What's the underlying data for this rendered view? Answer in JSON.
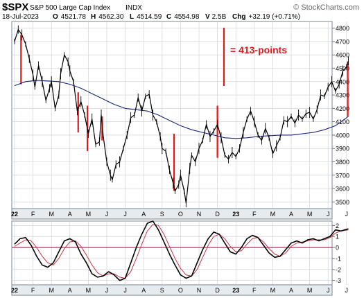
{
  "header": {
    "symbol": "$SPX",
    "name": "S&P 500 Large Cap Index",
    "exchange": "INDX",
    "watermark": "© StockCharts.com",
    "date": "18-Jul-2023",
    "open_label": "O",
    "open": "4521.78",
    "high_label": "H",
    "high": "4562.30",
    "low_label": "L",
    "low": "4514.59",
    "close_label": "C",
    "close": "4554.98",
    "volume_label": "V",
    "volume": "2.5B",
    "chg_label": "Chg",
    "chg": "+32.19 (+0.71%)"
  },
  "annotation": "= 413-points",
  "colors": {
    "price": "#000000",
    "ma": "#1a237e",
    "red": "#e01a1a",
    "osc_signal": "#cc3344",
    "zero_line": "#c00040",
    "grid": "#c8cdd2",
    "ticks_bg": "#e6ebef"
  },
  "chart_data": [
    {
      "type": "line",
      "x_tick_labels": [
        "22",
        "F",
        "M",
        "A",
        "M",
        "J",
        "J",
        "A",
        "S",
        "O",
        "N",
        "D",
        "23",
        "F",
        "M",
        "A",
        "M",
        "J",
        "J"
      ],
      "y_tick_labels": [
        "3500",
        "3600",
        "3700",
        "3800",
        "3900",
        "4000",
        "4100",
        "4200",
        "4300",
        "4400",
        "4500",
        "4600",
        "4700",
        "4800"
      ],
      "ylim": [
        3450,
        4850
      ],
      "series": [
        {
          "role": "price",
          "points": [
            [
              0.0,
              4700
            ],
            [
              0.2,
              4790
            ],
            [
              0.4,
              4750
            ],
            [
              0.6,
              4680
            ],
            [
              0.8,
              4570
            ],
            [
              1.0,
              4450
            ],
            [
              1.1,
              4360
            ],
            [
              1.3,
              4520
            ],
            [
              1.5,
              4400
            ],
            [
              1.7,
              4260
            ],
            [
              1.9,
              4350
            ],
            [
              2.0,
              4400
            ],
            [
              2.2,
              4200
            ],
            [
              2.4,
              4300
            ],
            [
              2.5,
              4460
            ],
            [
              2.7,
              4600
            ],
            [
              2.9,
              4550
            ],
            [
              3.0,
              4480
            ],
            [
              3.2,
              4400
            ],
            [
              3.4,
              4180
            ],
            [
              3.6,
              4250
            ],
            [
              3.8,
              4150
            ],
            [
              4.0,
              4010
            ],
            [
              4.2,
              4120
            ],
            [
              4.4,
              3930
            ],
            [
              4.6,
              3950
            ],
            [
              4.7,
              4150
            ],
            [
              4.8,
              4000
            ],
            [
              5.0,
              3800
            ],
            [
              5.2,
              3700
            ],
            [
              5.3,
              3666
            ],
            [
              5.5,
              3780
            ],
            [
              5.7,
              3800
            ],
            [
              5.9,
              3900
            ],
            [
              6.1,
              4000
            ],
            [
              6.3,
              4130
            ],
            [
              6.5,
              4150
            ],
            [
              6.7,
              4280
            ],
            [
              6.9,
              4180
            ],
            [
              7.1,
              4290
            ],
            [
              7.3,
              4305
            ],
            [
              7.5,
              4150
            ],
            [
              7.7,
              4100
            ],
            [
              7.9,
              3990
            ],
            [
              8.0,
              3900
            ],
            [
              8.2,
              3880
            ],
            [
              8.4,
              3740
            ],
            [
              8.6,
              3640
            ],
            [
              8.7,
              3580
            ],
            [
              8.9,
              3630
            ],
            [
              9.0,
              3700
            ],
            [
              9.2,
              3580
            ],
            [
              9.3,
              3491
            ],
            [
              9.5,
              3750
            ],
            [
              9.6,
              3850
            ],
            [
              9.8,
              3800
            ],
            [
              10.0,
              3900
            ],
            [
              10.2,
              3960
            ],
            [
              10.4,
              4080
            ],
            [
              10.6,
              3990
            ],
            [
              10.8,
              4030
            ],
            [
              11.0,
              4080
            ],
            [
              11.2,
              3980
            ],
            [
              11.4,
              3850
            ],
            [
              11.6,
              3820
            ],
            [
              11.8,
              3870
            ],
            [
              12.0,
              3840
            ],
            [
              12.2,
              3900
            ],
            [
              12.4,
              4020
            ],
            [
              12.6,
              4120
            ],
            [
              12.8,
              4180
            ],
            [
              13.0,
              4100
            ],
            [
              13.2,
              4000
            ],
            [
              13.4,
              3960
            ],
            [
              13.6,
              4050
            ],
            [
              13.8,
              3980
            ],
            [
              14.0,
              3860
            ],
            [
              14.2,
              3920
            ],
            [
              14.4,
              3980
            ],
            [
              14.6,
              4110
            ],
            [
              14.8,
              4100
            ],
            [
              15.0,
              4140
            ],
            [
              15.2,
              4090
            ],
            [
              15.4,
              4150
            ],
            [
              15.6,
              4120
            ],
            [
              15.8,
              4160
            ],
            [
              16.0,
              4170
            ],
            [
              16.2,
              4120
            ],
            [
              16.4,
              4190
            ],
            [
              16.6,
              4300
            ],
            [
              16.8,
              4290
            ],
            [
              17.0,
              4360
            ],
            [
              17.2,
              4400
            ],
            [
              17.4,
              4330
            ],
            [
              17.6,
              4380
            ],
            [
              17.8,
              4480
            ],
            [
              18.0,
              4510
            ],
            [
              18.1,
              4555
            ]
          ]
        },
        {
          "role": "moving-average",
          "points": [
            [
              0.0,
              4370
            ],
            [
              0.6,
              4400
            ],
            [
              1.2,
              4410
            ],
            [
              1.8,
              4405
            ],
            [
              2.4,
              4400
            ],
            [
              3.0,
              4380
            ],
            [
              3.6,
              4350
            ],
            [
              4.2,
              4310
            ],
            [
              4.8,
              4270
            ],
            [
              5.4,
              4230
            ],
            [
              6.0,
              4200
            ],
            [
              6.6,
              4190
            ],
            [
              7.2,
              4180
            ],
            [
              7.8,
              4150
            ],
            [
              8.4,
              4110
            ],
            [
              9.0,
              4070
            ],
            [
              9.6,
              4040
            ],
            [
              10.2,
              4020
            ],
            [
              10.8,
              4000
            ],
            [
              11.4,
              3980
            ],
            [
              12.0,
              3975
            ],
            [
              12.6,
              3980
            ],
            [
              13.2,
              3990
            ],
            [
              13.8,
              3995
            ],
            [
              14.4,
              4000
            ],
            [
              15.0,
              4000
            ],
            [
              15.6,
              4010
            ],
            [
              16.2,
              4020
            ],
            [
              16.8,
              4040
            ],
            [
              17.4,
              4070
            ],
            [
              18.1,
              4140
            ]
          ]
        }
      ],
      "vertical_markers": [
        {
          "x": 0.35,
          "from": 4380,
          "to": 4750
        },
        {
          "x": 3.45,
          "from": 4020,
          "to": 4320
        },
        {
          "x": 3.95,
          "from": 3880,
          "to": 4220
        },
        {
          "x": 4.75,
          "from": 3960,
          "to": 4140
        },
        {
          "x": 8.65,
          "from": 3585,
          "to": 4010
        },
        {
          "x": 11.0,
          "from": 3830,
          "to": 4220
        },
        {
          "x": 18.07,
          "from": 4140,
          "to": 4550
        }
      ]
    },
    {
      "type": "line",
      "x_tick_labels": [
        "22",
        "F",
        "M",
        "A",
        "M",
        "J",
        "J",
        "A",
        "S",
        "O",
        "N",
        "D",
        "23",
        "F",
        "M",
        "A",
        "M",
        "J",
        "J"
      ],
      "y_tick_labels": [
        "2",
        "1",
        "0",
        "-1",
        "-2",
        "-3"
      ],
      "ylim": [
        -3.4,
        2.4
      ],
      "zero_line": 0,
      "series": [
        {
          "role": "oscillator",
          "points": [
            [
              0.0,
              0.3
            ],
            [
              0.3,
              0.8
            ],
            [
              0.6,
              0.9
            ],
            [
              0.9,
              0.2
            ],
            [
              1.2,
              -0.8
            ],
            [
              1.5,
              -1.6
            ],
            [
              1.8,
              -1.8
            ],
            [
              2.1,
              -1.4
            ],
            [
              2.4,
              -0.4
            ],
            [
              2.7,
              0.6
            ],
            [
              3.0,
              0.8
            ],
            [
              3.3,
              0.5
            ],
            [
              3.6,
              -0.6
            ],
            [
              3.9,
              -1.4
            ],
            [
              4.2,
              -2.4
            ],
            [
              4.5,
              -2.7
            ],
            [
              4.8,
              -2.6
            ],
            [
              5.1,
              -2.2
            ],
            [
              5.4,
              -2.5
            ],
            [
              5.7,
              -3.0
            ],
            [
              6.0,
              -2.8
            ],
            [
              6.3,
              -1.4
            ],
            [
              6.6,
              0.0
            ],
            [
              6.9,
              1.2
            ],
            [
              7.2,
              2.2
            ],
            [
              7.5,
              2.4
            ],
            [
              7.8,
              1.6
            ],
            [
              8.1,
              0.5
            ],
            [
              8.4,
              -0.6
            ],
            [
              8.7,
              -1.6
            ],
            [
              9.0,
              -2.5
            ],
            [
              9.3,
              -2.8
            ],
            [
              9.6,
              -2.6
            ],
            [
              9.9,
              -1.4
            ],
            [
              10.2,
              -0.2
            ],
            [
              10.5,
              0.8
            ],
            [
              10.8,
              1.4
            ],
            [
              11.1,
              1.2
            ],
            [
              11.4,
              0.4
            ],
            [
              11.7,
              -0.4
            ],
            [
              12.0,
              -0.6
            ],
            [
              12.3,
              0.0
            ],
            [
              12.6,
              0.8
            ],
            [
              12.9,
              1.1
            ],
            [
              13.2,
              0.9
            ],
            [
              13.5,
              0.2
            ],
            [
              13.8,
              -0.5
            ],
            [
              14.1,
              -0.9
            ],
            [
              14.4,
              -0.8
            ],
            [
              14.7,
              -0.2
            ],
            [
              15.0,
              0.4
            ],
            [
              15.3,
              0.6
            ],
            [
              15.6,
              0.4
            ],
            [
              15.9,
              0.7
            ],
            [
              16.2,
              0.8
            ],
            [
              16.5,
              0.6
            ],
            [
              16.8,
              0.8
            ],
            [
              17.1,
              1.0
            ],
            [
              17.4,
              1.6
            ],
            [
              17.7,
              1.5
            ],
            [
              18.1,
              1.7
            ]
          ]
        },
        {
          "role": "signal",
          "points": [
            [
              0.0,
              0.1
            ],
            [
              0.3,
              0.4
            ],
            [
              0.6,
              0.7
            ],
            [
              0.9,
              0.6
            ],
            [
              1.2,
              0.0
            ],
            [
              1.5,
              -0.8
            ],
            [
              1.8,
              -1.4
            ],
            [
              2.1,
              -1.6
            ],
            [
              2.4,
              -1.0
            ],
            [
              2.7,
              -0.1
            ],
            [
              3.0,
              0.5
            ],
            [
              3.3,
              0.6
            ],
            [
              3.6,
              0.1
            ],
            [
              3.9,
              -0.7
            ],
            [
              4.2,
              -1.6
            ],
            [
              4.5,
              -2.3
            ],
            [
              4.8,
              -2.6
            ],
            [
              5.1,
              -2.4
            ],
            [
              5.4,
              -2.4
            ],
            [
              5.7,
              -2.7
            ],
            [
              6.0,
              -2.8
            ],
            [
              6.3,
              -2.2
            ],
            [
              6.6,
              -1.0
            ],
            [
              6.9,
              0.3
            ],
            [
              7.2,
              1.5
            ],
            [
              7.5,
              2.1
            ],
            [
              7.8,
              2.0
            ],
            [
              8.1,
              1.2
            ],
            [
              8.4,
              0.1
            ],
            [
              8.7,
              -1.0
            ],
            [
              9.0,
              -1.9
            ],
            [
              9.3,
              -2.5
            ],
            [
              9.6,
              -2.6
            ],
            [
              9.9,
              -2.0
            ],
            [
              10.2,
              -0.9
            ],
            [
              10.5,
              0.2
            ],
            [
              10.8,
              1.0
            ],
            [
              11.1,
              1.2
            ],
            [
              11.4,
              0.8
            ],
            [
              11.7,
              0.1
            ],
            [
              12.0,
              -0.4
            ],
            [
              12.3,
              -0.3
            ],
            [
              12.6,
              0.3
            ],
            [
              12.9,
              0.8
            ],
            [
              13.2,
              0.9
            ],
            [
              13.5,
              0.5
            ],
            [
              13.8,
              -0.1
            ],
            [
              14.1,
              -0.6
            ],
            [
              14.4,
              -0.8
            ],
            [
              14.7,
              -0.5
            ],
            [
              15.0,
              0.1
            ],
            [
              15.3,
              0.4
            ],
            [
              15.6,
              0.5
            ],
            [
              15.9,
              0.6
            ],
            [
              16.2,
              0.7
            ],
            [
              16.5,
              0.7
            ],
            [
              16.8,
              0.7
            ],
            [
              17.1,
              0.9
            ],
            [
              17.4,
              1.3
            ],
            [
              17.7,
              1.5
            ],
            [
              18.1,
              1.6
            ]
          ]
        }
      ]
    }
  ]
}
